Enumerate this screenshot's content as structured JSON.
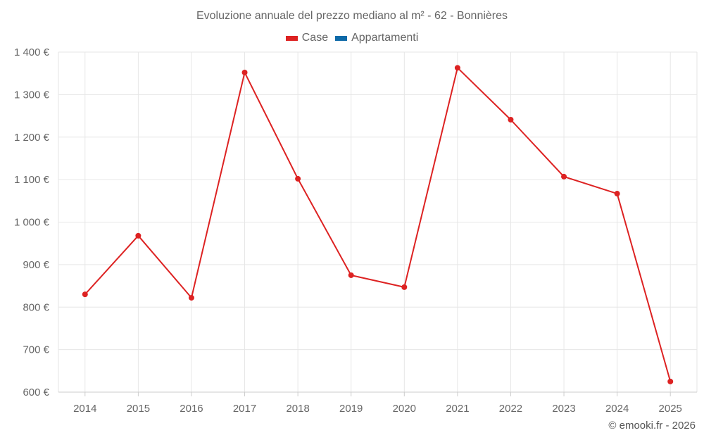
{
  "header": {
    "title": "Evoluzione annuale del prezzo mediano al m² - 62 - Bonnières"
  },
  "legend": [
    {
      "label": "Case",
      "color": "#dd2222"
    },
    {
      "label": "Appartamenti",
      "color": "#0e6aa8"
    }
  ],
  "footer": {
    "credit": "© emooki.fr - 2026"
  },
  "chart_data": {
    "type": "line",
    "title": "Evoluzione annuale del prezzo mediano al m² - 62 - Bonnières",
    "xlabel": "",
    "ylabel": "",
    "categories": [
      "2014",
      "2015",
      "2016",
      "2017",
      "2018",
      "2019",
      "2020",
      "2021",
      "2022",
      "2023",
      "2024",
      "2025"
    ],
    "series": [
      {
        "name": "Case",
        "color": "#dd2222",
        "values": [
          830,
          968,
          822,
          1352,
          1102,
          875,
          847,
          1363,
          1241,
          1107,
          1067,
          625
        ]
      },
      {
        "name": "Appartamenti",
        "color": "#0e6aa8",
        "values": []
      }
    ],
    "ylim": [
      600,
      1400
    ],
    "yticks": [
      600,
      700,
      800,
      900,
      1000,
      1100,
      1200,
      1300,
      1400
    ],
    "ytick_labels": [
      "600 €",
      "700 €",
      "800 €",
      "900 €",
      "1 000 €",
      "1 100 €",
      "1 200 €",
      "1 300 €",
      "1 400 €"
    ],
    "grid": true,
    "legend_position": "top"
  }
}
